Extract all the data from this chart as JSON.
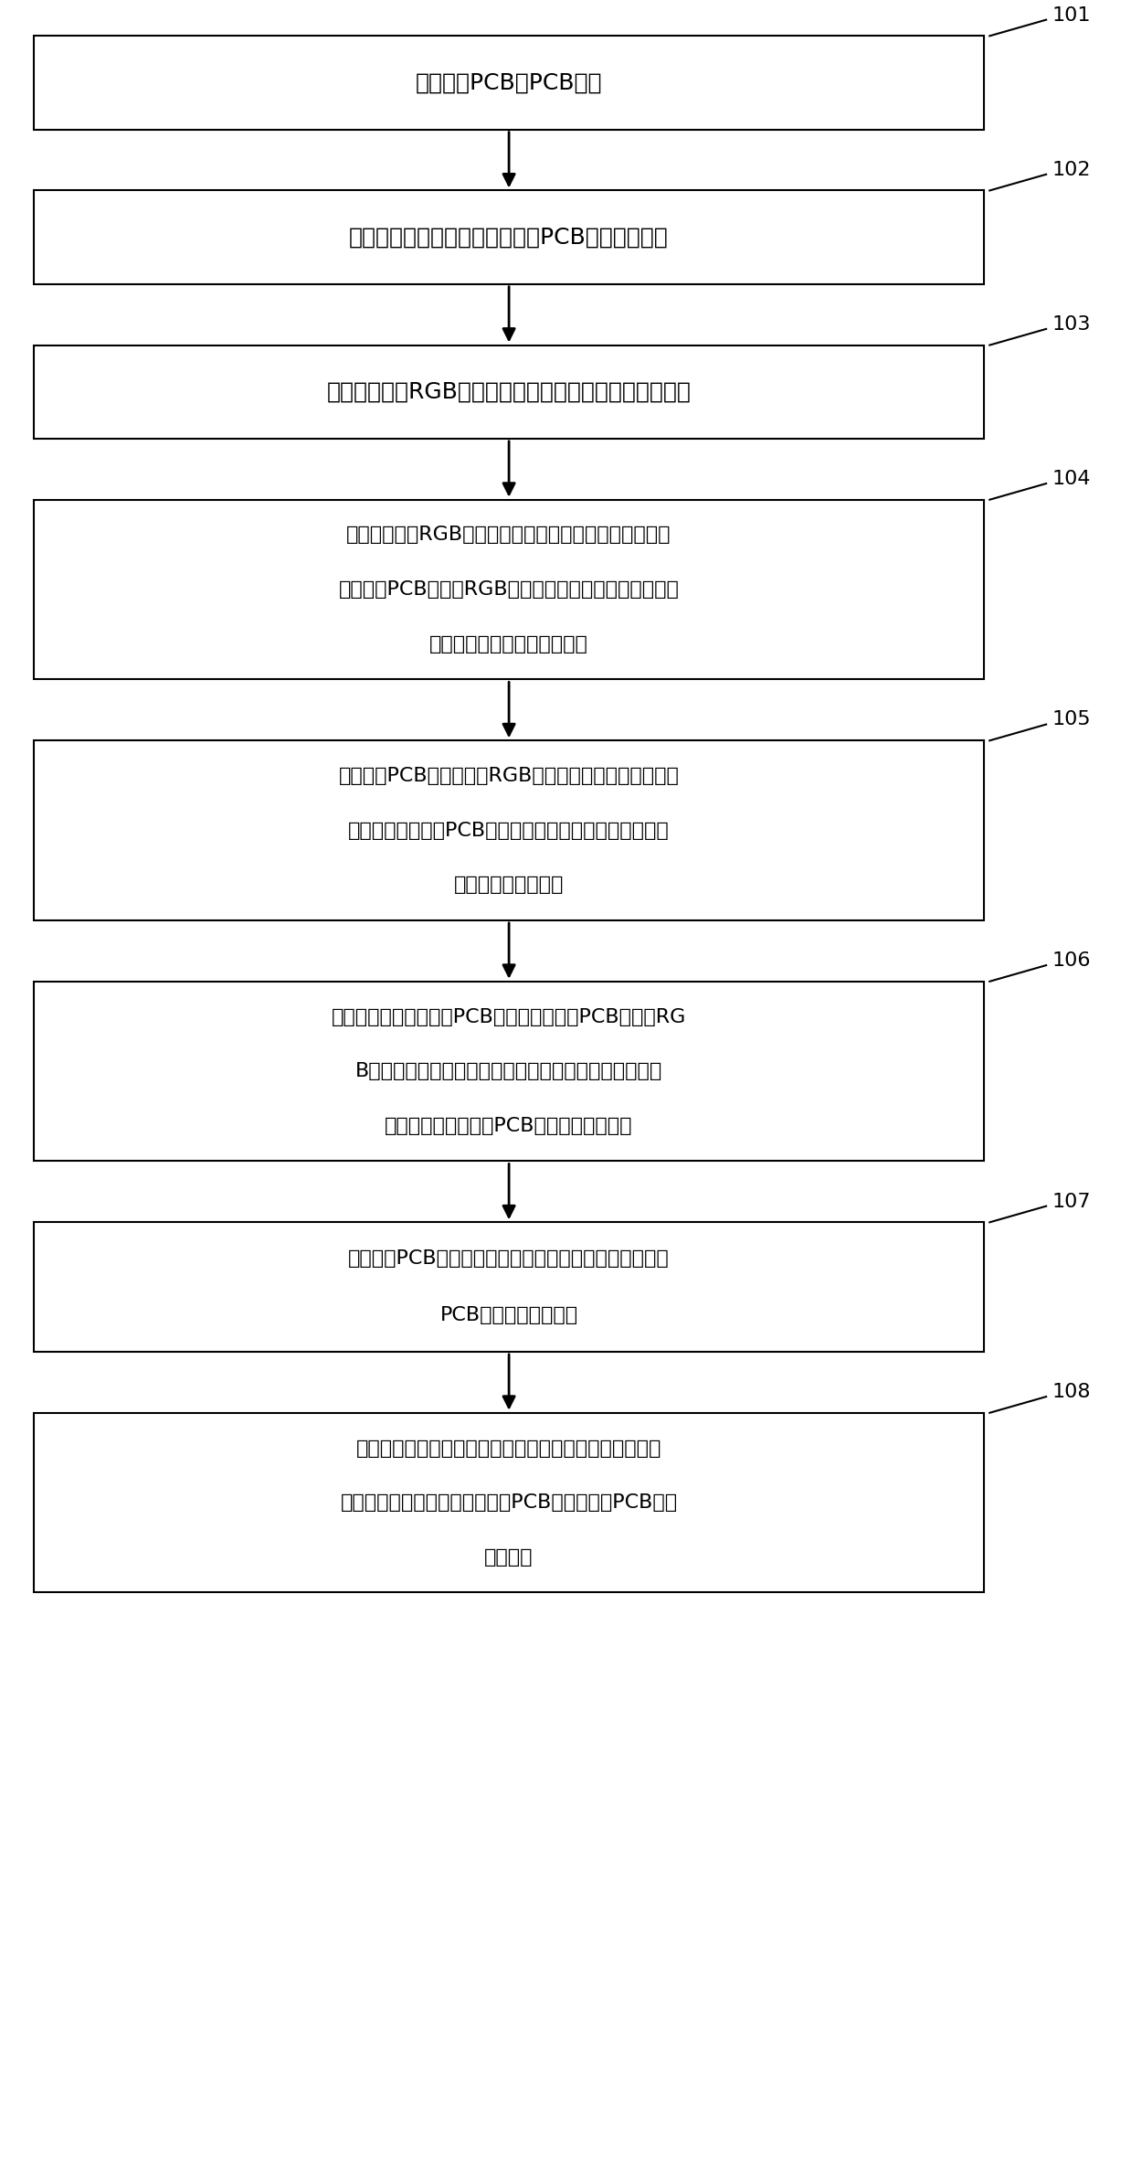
{
  "background_color": "#ffffff",
  "box_edge_color": "#000000",
  "box_fill_color": "#ffffff",
  "text_color": "#000000",
  "arrow_color": "#000000",
  "label_color": "#000000",
  "boxes": [
    {
      "id": "101",
      "lines": [
        "获取多个PCB的PCB图像"
      ]
    },
    {
      "id": "102",
      "lines": [
        "以预设步长为单位的网格对所述PCB图像进行分块"
      ]
    },
    {
      "id": "103",
      "lines": [
        "获取所述块的RGB直方图、亮度、对比度和结构对比信息"
      ]
    },
    {
      "id": "104",
      "lines": [
        "使用所述块的RGB直方图、亮度、对比度和结构对比信息",
        "计算所述PCB图像的RGB直方图、亮度、对比度和结构对",
        "比信息的均值、方差和协方差"
      ]
    },
    {
      "id": "105",
      "lines": [
        "根据所述PCB图像的块的RGB直方图、亮度、对比度和结",
        "构对比信息在所述PCB图像中标注指定模块，并记录所述",
        "指定模块的位置信息"
      ]
    },
    {
      "id": "106",
      "lines": [
        "对具有相同指定模块的PCB图像，使用所述PCB图像的RG",
        "B直方图、亮度、对比度和结构对比信息的均值、方差和",
        "协方差两两计算所述PCB图像的第一相似度"
      ]
    },
    {
      "id": "107",
      "lines": [
        "使用所述PCB图像中的指定模块的位置信息两两计算所述",
        "PCB图像的第二相似度"
      ]
    },
    {
      "id": "108",
      "lines": [
        "当确定第一相似度大于第一预设阈值，且第二相似度大于",
        "第二预设阈值时，确定两个所述PCB图像对应的PCB为同",
        "质化产品"
      ]
    }
  ],
  "figure_width": 12.38,
  "figure_height": 23.6,
  "dpi": 100
}
